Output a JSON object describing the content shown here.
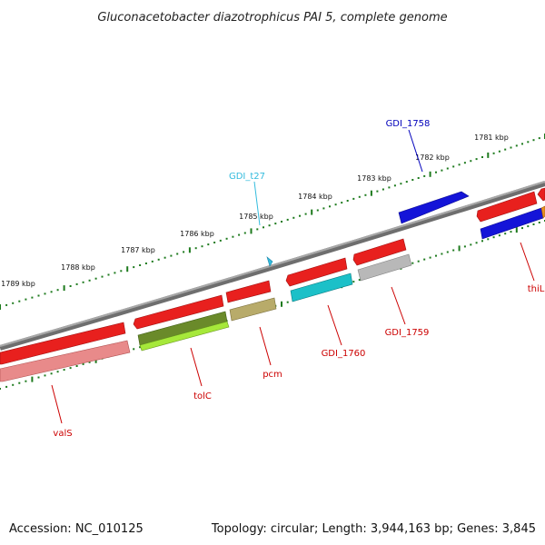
{
  "title": "Gluconacetobacter diazotrophicus PAI 5, complete genome",
  "footer": {
    "accession": "Accession: NC_010125",
    "topology": "Topology: circular; Length: 3,944,163 bp; Genes: 3,845"
  },
  "scale_labels": [
    "1781 kbp",
    "1782 kbp",
    "1783 kbp",
    "1784 kbp",
    "1785 kbp",
    "1786 kbp",
    "1787 kbp",
    "1788 kbp",
    "1789 kbp"
  ],
  "gene_labels": [
    "GDI_1758",
    "GDI_t27",
    "valS",
    "tolC",
    "pcm",
    "GDI_1760",
    "GDI_1759",
    "thiL"
  ],
  "colors": {
    "backbone": "#8c8c8c",
    "tick": "#1d7a1d",
    "forward_red": "#e8201e",
    "reverse_red": "#e88080",
    "blue": "#1414d8",
    "cyan": "#1cc0c8",
    "olive": "#6a8a2a",
    "lime": "#a6e83a",
    "khaki": "#b8ab6a",
    "grey": "#b0b0b0",
    "orange": "#e89020",
    "label_red": "#cc0000",
    "label_blue": "#0000bb",
    "label_cyan": "#33bbdd"
  }
}
